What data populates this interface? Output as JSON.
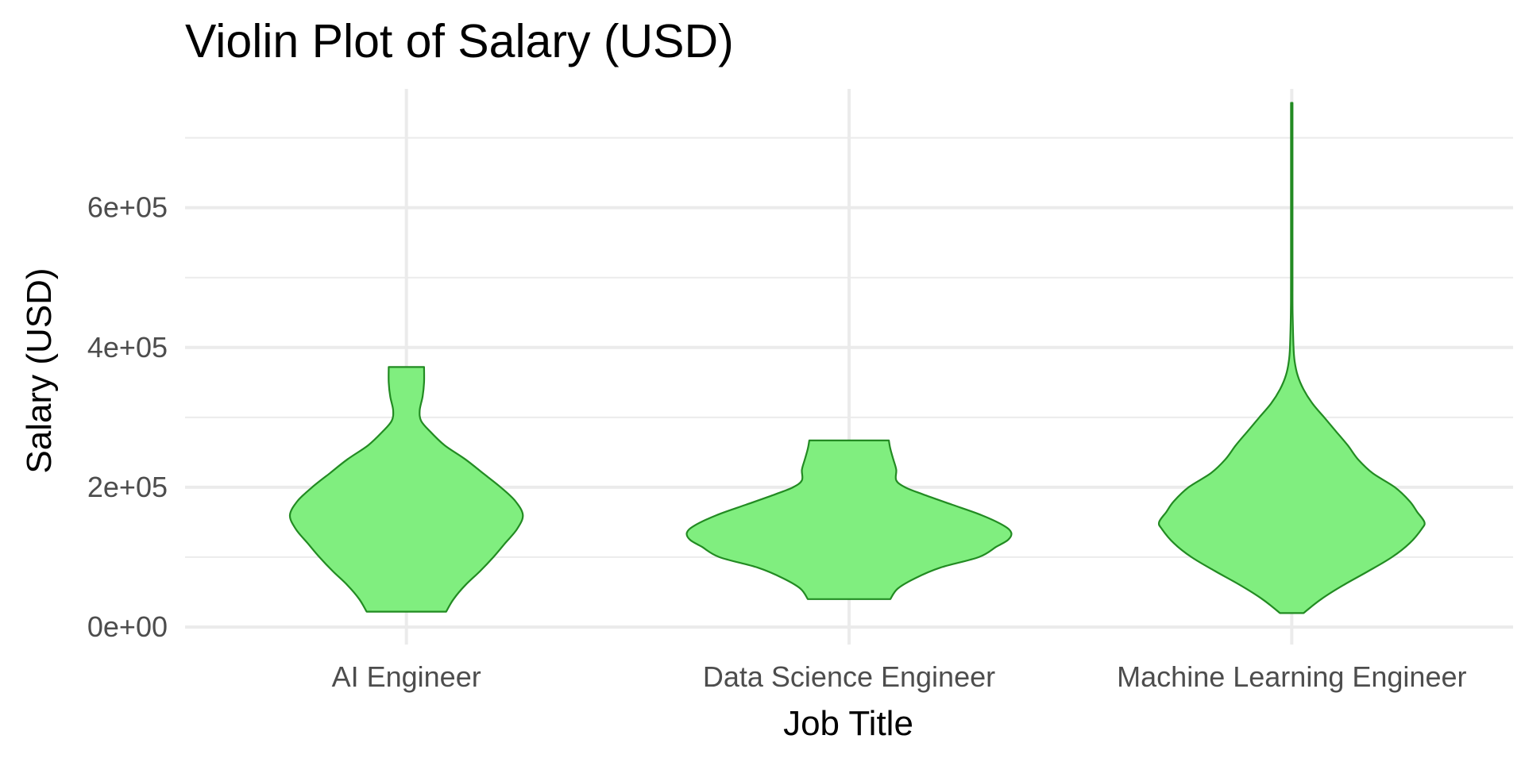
{
  "chart_data": {
    "type": "violin",
    "title": "Violin Plot of Salary (USD)",
    "xlabel": "Job Title",
    "ylabel": "Salary (USD)",
    "categories": [
      "AI Engineer",
      "Data Science Engineer",
      "Machine Learning Engineer"
    ],
    "ylim": [
      -25000,
      770000
    ],
    "y_ticks": [
      {
        "value": 0,
        "label": "0e+00"
      },
      {
        "value": 200000,
        "label": "2e+05"
      },
      {
        "value": 400000,
        "label": "4e+05"
      },
      {
        "value": 600000,
        "label": "6e+05"
      }
    ],
    "y_minor_ticks": [
      100000,
      300000,
      500000,
      700000
    ],
    "grid": true,
    "legend": "none",
    "colors": {
      "fill": "#80ee7f",
      "stroke": "#228b22",
      "grid": "#ebebeb",
      "tick_text": "#4d4d4d"
    },
    "series": [
      {
        "category": "AI Engineer",
        "min": 22000,
        "max": 372000,
        "density": [
          [
            22000,
            0.27
          ],
          [
            40000,
            0.32
          ],
          [
            60000,
            0.4
          ],
          [
            80000,
            0.5
          ],
          [
            100000,
            0.59
          ],
          [
            120000,
            0.67
          ],
          [
            140000,
            0.75
          ],
          [
            160000,
            0.79
          ],
          [
            180000,
            0.74
          ],
          [
            200000,
            0.64
          ],
          [
            220000,
            0.52
          ],
          [
            240000,
            0.4
          ],
          [
            260000,
            0.26
          ],
          [
            280000,
            0.16
          ],
          [
            295000,
            0.1
          ],
          [
            310000,
            0.09
          ],
          [
            330000,
            0.11
          ],
          [
            350000,
            0.12
          ],
          [
            372000,
            0.12
          ]
        ]
      },
      {
        "category": "Data Science Engineer",
        "min": 40000,
        "max": 267000,
        "density": [
          [
            40000,
            0.28
          ],
          [
            55000,
            0.33
          ],
          [
            70000,
            0.45
          ],
          [
            85000,
            0.62
          ],
          [
            100000,
            0.88
          ],
          [
            115000,
            1.0
          ],
          [
            125000,
            1.08
          ],
          [
            135000,
            1.1
          ],
          [
            145000,
            1.05
          ],
          [
            160000,
            0.9
          ],
          [
            175000,
            0.7
          ],
          [
            190000,
            0.5
          ],
          [
            200000,
            0.38
          ],
          [
            210000,
            0.32
          ],
          [
            225000,
            0.32
          ],
          [
            240000,
            0.3
          ],
          [
            255000,
            0.28
          ],
          [
            267000,
            0.27
          ]
        ]
      },
      {
        "category": "Machine Learning Engineer",
        "min": 20000,
        "max": 750000,
        "density": [
          [
            20000,
            0.08
          ],
          [
            40000,
            0.2
          ],
          [
            60000,
            0.35
          ],
          [
            80000,
            0.52
          ],
          [
            100000,
            0.68
          ],
          [
            120000,
            0.8
          ],
          [
            140000,
            0.88
          ],
          [
            150000,
            0.9
          ],
          [
            165000,
            0.85
          ],
          [
            180000,
            0.8
          ],
          [
            200000,
            0.7
          ],
          [
            220000,
            0.55
          ],
          [
            240000,
            0.45
          ],
          [
            260000,
            0.38
          ],
          [
            280000,
            0.3
          ],
          [
            300000,
            0.22
          ],
          [
            320000,
            0.14
          ],
          [
            340000,
            0.08
          ],
          [
            360000,
            0.04
          ],
          [
            380000,
            0.02
          ],
          [
            400000,
            0.012
          ],
          [
            450000,
            0.006
          ],
          [
            500000,
            0.005
          ],
          [
            600000,
            0.005
          ],
          [
            700000,
            0.005
          ],
          [
            750000,
            0.005
          ]
        ]
      }
    ]
  }
}
